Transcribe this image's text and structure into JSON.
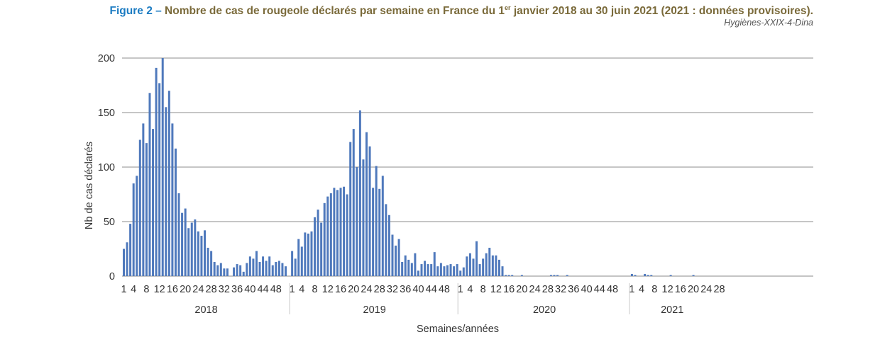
{
  "header": {
    "figure_label": "Figure 2 –",
    "title_part1": " Nombre de cas de rougeole déclarés par semaine en France du 1",
    "title_sup": "er",
    "title_part2": " janvier 2018 au 30 juin 2021 (2021 : données provisoires).",
    "credit": "Hygiènes-XXIX-4-Dina"
  },
  "chart_data": {
    "type": "bar",
    "title": "Nombre de cas de rougeole déclarés par semaine en France du 1er janvier 2018 au 30 juin 2021 (2021 : données provisoires).",
    "xlabel": "Semaines/années",
    "ylabel": "Nb de cas déclarés",
    "ylim": [
      0,
      200
    ],
    "yticks": [
      0,
      50,
      100,
      150,
      200
    ],
    "grid": true,
    "bar_color": "#4f79bc",
    "grid_color": "#8c8c8c",
    "years": [
      {
        "label": "2018",
        "weeks": 52,
        "tick_weeks": [
          1,
          4,
          8,
          12,
          16,
          20,
          24,
          28,
          32,
          36,
          40,
          44,
          48
        ],
        "values": [
          25,
          31,
          48,
          85,
          92,
          125,
          140,
          122,
          168,
          135,
          191,
          177,
          200,
          155,
          170,
          140,
          117,
          76,
          58,
          62,
          44,
          49,
          52,
          41,
          37,
          42,
          26,
          23,
          13,
          10,
          12,
          7,
          7,
          0,
          8,
          11,
          10,
          4,
          12,
          18,
          16,
          23,
          13,
          18,
          14,
          18,
          10,
          13,
          14,
          12,
          9,
          0
        ]
      },
      {
        "label": "2019",
        "weeks": 52,
        "tick_weeks": [
          1,
          4,
          8,
          12,
          16,
          20,
          24,
          28,
          32,
          36,
          40,
          44,
          48
        ],
        "values": [
          23,
          16,
          34,
          27,
          40,
          39,
          41,
          54,
          61,
          49,
          67,
          73,
          76,
          81,
          79,
          81,
          82,
          75,
          123,
          135,
          100,
          152,
          107,
          132,
          119,
          81,
          101,
          80,
          92,
          66,
          56,
          38,
          28,
          34,
          13,
          19,
          15,
          12,
          21,
          5,
          11,
          14,
          11,
          11,
          22,
          9,
          12,
          9,
          10,
          11,
          9,
          11
        ]
      },
      {
        "label": "2020",
        "weeks": 53,
        "tick_weeks": [
          1,
          4,
          8,
          12,
          16,
          20,
          24,
          28,
          32,
          36,
          40,
          44,
          48
        ],
        "values": [
          5,
          8,
          18,
          21,
          16,
          32,
          11,
          16,
          21,
          26,
          19,
          19,
          15,
          9,
          1,
          1,
          1,
          0,
          0,
          1,
          0,
          0,
          0,
          0,
          0,
          0,
          0,
          0,
          1,
          1,
          1,
          0,
          0,
          1,
          0,
          0,
          0,
          0,
          0,
          0,
          0,
          0,
          0,
          0,
          0,
          0,
          0,
          0,
          0,
          0,
          0,
          0,
          0
        ]
      },
      {
        "label": "2021",
        "weeks": 26,
        "tick_weeks": [
          1,
          4,
          8,
          12,
          16,
          20,
          24,
          28
        ],
        "values": [
          2,
          1,
          0,
          0,
          2,
          1,
          1,
          0,
          0,
          0,
          0,
          0,
          1,
          0,
          0,
          0,
          0,
          0,
          0,
          1,
          0,
          0,
          0,
          0,
          0,
          0
        ]
      }
    ]
  }
}
